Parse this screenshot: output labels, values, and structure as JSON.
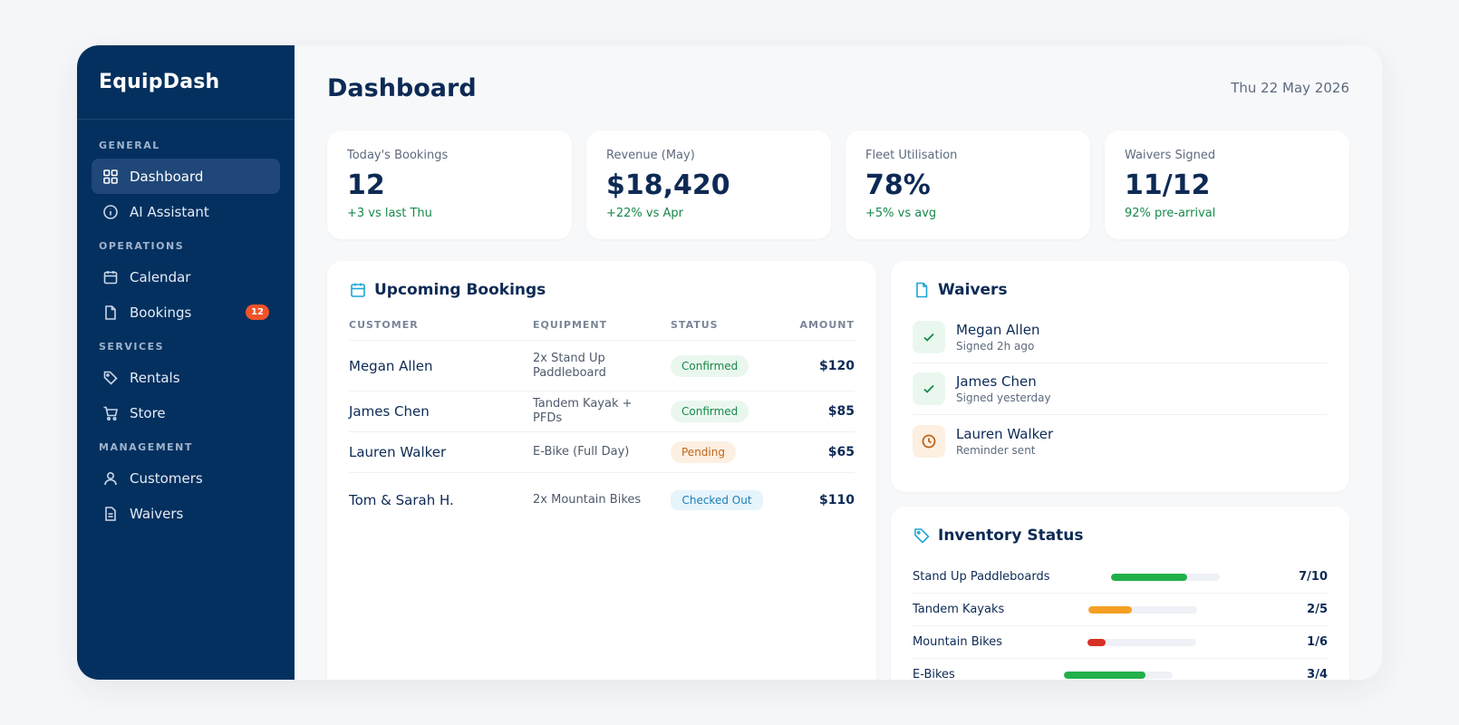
{
  "brand": "EquipDash",
  "sidebar": {
    "sections": [
      {
        "title": "GENERAL",
        "items": [
          {
            "label": "Dashboard",
            "icon": "grid-icon",
            "active": true
          },
          {
            "label": "AI Assistant",
            "icon": "info-icon"
          }
        ]
      },
      {
        "title": "OPERATIONS",
        "items": [
          {
            "label": "Calendar",
            "icon": "calendar-icon"
          },
          {
            "label": "Bookings",
            "icon": "file-icon",
            "badge": "12"
          }
        ]
      },
      {
        "title": "SERVICES",
        "items": [
          {
            "label": "Rentals",
            "icon": "tag-icon"
          },
          {
            "label": "Store",
            "icon": "cart-icon"
          }
        ]
      },
      {
        "title": "MANAGEMENT",
        "items": [
          {
            "label": "Customers",
            "icon": "user-icon"
          },
          {
            "label": "Waivers",
            "icon": "document-icon"
          }
        ]
      }
    ]
  },
  "header": {
    "title": "Dashboard",
    "date": "Thu 22 May 2026"
  },
  "stats": [
    {
      "label": "Today's Bookings",
      "value": "12",
      "delta": "+3 vs last Thu"
    },
    {
      "label": "Revenue (May)",
      "value": "$18,420",
      "delta": "+22% vs Apr"
    },
    {
      "label": "Fleet Utilisation",
      "value": "78%",
      "delta": "+5% vs avg"
    },
    {
      "label": "Waivers Signed",
      "value": "11/12",
      "delta": "92% pre-arrival"
    }
  ],
  "bookings": {
    "title": "Upcoming Bookings",
    "columns": [
      "CUSTOMER",
      "EQUIPMENT",
      "STATUS",
      "AMOUNT"
    ],
    "rows": [
      {
        "customer": "Megan Allen",
        "equipment": "2x Stand Up Paddleboard",
        "status": "Confirmed",
        "amount": "$120"
      },
      {
        "customer": "James Chen",
        "equipment": "Tandem Kayak + PFDs",
        "status": "Confirmed",
        "amount": "$85"
      },
      {
        "customer": "Lauren Walker",
        "equipment": "E-Bike (Full Day)",
        "status": "Pending",
        "amount": "$65"
      },
      {
        "customer": "Tom & Sarah H.",
        "equipment": "2x Mountain Bikes",
        "status": "Checked Out",
        "amount": "$110"
      }
    ]
  },
  "waivers": {
    "title": "Waivers",
    "items": [
      {
        "name": "Megan Allen",
        "sub": "Signed 2h ago",
        "state": "signed"
      },
      {
        "name": "James Chen",
        "sub": "Signed yesterday",
        "state": "signed"
      },
      {
        "name": "Lauren Walker",
        "sub": "Reminder sent",
        "state": "pending"
      }
    ]
  },
  "inventory": {
    "title": "Inventory Status",
    "items": [
      {
        "name": "Stand Up Paddleboards",
        "value": "7/10",
        "fraction": 0.7,
        "color": "#22b04b"
      },
      {
        "name": "Tandem Kayaks",
        "value": "2/5",
        "fraction": 0.4,
        "color": "#f5a025"
      },
      {
        "name": "Mountain Bikes",
        "value": "1/6",
        "fraction": 0.17,
        "color": "#d93025"
      },
      {
        "name": "E-Bikes",
        "value": "3/4",
        "fraction": 0.75,
        "color": "#22b04b"
      }
    ]
  }
}
